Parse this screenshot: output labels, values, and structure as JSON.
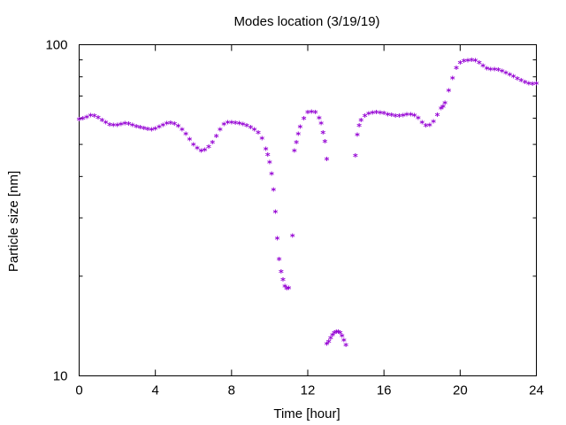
{
  "chart_data": {
    "type": "scatter",
    "title": "Modes location (3/19/19)",
    "xlabel": "Time [hour]",
    "ylabel": "Particle size [nm]",
    "xlim": [
      0,
      24
    ],
    "ylim": [
      10,
      100
    ],
    "y_scale": "log",
    "grid": false,
    "legend": "none",
    "x_ticks": [
      0,
      4,
      8,
      12,
      16,
      20,
      24
    ],
    "x_tick_labels": [
      "0",
      "4",
      "8",
      "12",
      "16",
      "20",
      "24"
    ],
    "y_ticks": [
      10,
      100
    ],
    "y_tick_labels": [
      "10",
      "100"
    ],
    "marker": "asterisk",
    "marker_color": "#9400D3",
    "series": [
      {
        "x": [
          0.0,
          0.2,
          0.4,
          0.6,
          0.8,
          1.0,
          1.2,
          1.4,
          1.6,
          1.8,
          2.0,
          2.2,
          2.4,
          2.6,
          2.8,
          3.0,
          3.2,
          3.4,
          3.6,
          3.8,
          4.0,
          4.2,
          4.4,
          4.6,
          4.8,
          5.0,
          5.2,
          5.4,
          5.6,
          5.8,
          6.0,
          6.2,
          6.4,
          6.6,
          6.8,
          7.0,
          7.2,
          7.4,
          7.6,
          7.8,
          8.0,
          8.2,
          8.4,
          8.6,
          8.8,
          9.0,
          9.2,
          9.4,
          9.6,
          9.8,
          9.9,
          10.0,
          10.1,
          10.2,
          10.3,
          10.4,
          10.5,
          10.6,
          10.7,
          10.8,
          10.9,
          11.0,
          11.2,
          11.3,
          11.4,
          11.5,
          11.6,
          11.8,
          12.0,
          12.2,
          12.4,
          12.6,
          12.7,
          12.8,
          12.9,
          13.0,
          13.0,
          13.1,
          13.2,
          13.3,
          13.4,
          13.5,
          13.6,
          13.7,
          13.8,
          13.9,
          14.0,
          14.5,
          14.6,
          14.7,
          14.8,
          15.0,
          15.2,
          15.4,
          15.6,
          15.8,
          16.0,
          16.2,
          16.4,
          16.6,
          16.8,
          17.0,
          17.2,
          17.4,
          17.6,
          17.8,
          18.0,
          18.2,
          18.4,
          18.6,
          18.8,
          19.0,
          19.1,
          19.2,
          19.4,
          19.6,
          19.8,
          20.0,
          20.2,
          20.4,
          20.6,
          20.8,
          21.0,
          21.2,
          21.4,
          21.6,
          21.8,
          22.0,
          22.2,
          22.4,
          22.6,
          22.8,
          23.0,
          23.2,
          23.4,
          23.6,
          23.8,
          24.0
        ],
        "y": [
          59.0,
          59.5,
          60.0,
          60.8,
          60.6,
          59.8,
          58.8,
          57.8,
          57.0,
          56.7,
          56.8,
          57.1,
          57.4,
          57.2,
          56.8,
          56.3,
          55.9,
          55.6,
          55.2,
          55.0,
          55.4,
          56.0,
          56.8,
          57.4,
          57.7,
          57.3,
          56.4,
          55.1,
          53.4,
          51.4,
          49.6,
          48.3,
          47.5,
          47.8,
          48.8,
          50.4,
          52.6,
          55.0,
          57.1,
          57.8,
          57.8,
          57.7,
          57.5,
          57.1,
          56.6,
          55.9,
          55.1,
          53.9,
          51.8,
          48.1,
          46.2,
          43.8,
          40.5,
          36.2,
          31.0,
          25.8,
          22.3,
          20.5,
          19.4,
          18.5,
          18.2,
          18.3,
          26.3,
          47.5,
          50.4,
          53.4,
          56.0,
          59.4,
          62.1,
          62.3,
          62.1,
          59.6,
          57.4,
          53.9,
          50.6,
          44.8,
          12.4,
          12.6,
          12.9,
          13.2,
          13.4,
          13.5,
          13.5,
          13.4,
          13.1,
          12.7,
          12.3,
          45.9,
          53.0,
          56.5,
          58.8,
          60.6,
          61.5,
          61.9,
          62.0,
          61.9,
          61.6,
          61.2,
          60.9,
          60.6,
          60.6,
          60.8,
          61.2,
          61.2,
          60.8,
          59.7,
          57.9,
          56.6,
          56.7,
          58.1,
          60.9,
          63.8,
          64.6,
          66.2,
          72.1,
          78.6,
          84.4,
          87.5,
          88.6,
          89.0,
          89.3,
          88.9,
          87.6,
          85.8,
          84.2,
          83.7,
          83.7,
          83.3,
          82.5,
          81.5,
          80.6,
          79.6,
          78.4,
          77.4,
          76.5,
          75.8,
          75.5,
          75.7
        ]
      }
    ]
  }
}
